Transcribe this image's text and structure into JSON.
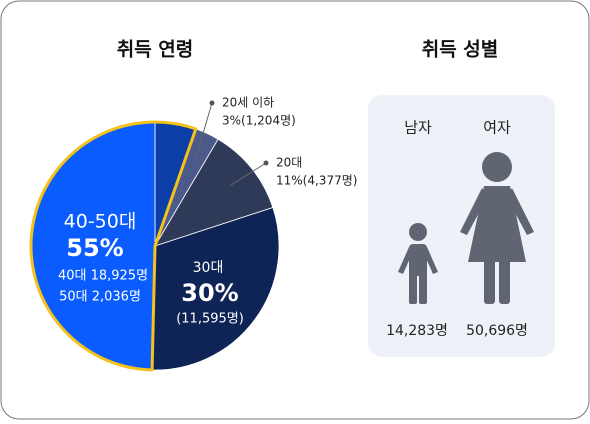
{
  "chart_data": {
    "type": "pie",
    "title": "취득 연령",
    "categories": [
      null,
      "20세 이하",
      "20대",
      "30대",
      null
    ],
    "values": [
      2036,
      1204,
      4377,
      11595,
      18925
    ],
    "value_labels": [
      "50대 2,036명",
      "3%(1,204명)",
      "11%(4,377명)",
      "(11,595명)",
      "40대 18,925명"
    ],
    "colors": [
      "#0b3ea6",
      "#4b5a8a",
      "#2e3a58",
      "#0f2456",
      "#0a5cff"
    ],
    "outline_color": "#f5c21b",
    "callouts": [
      {
        "name": "40-50대",
        "value": {
          "value": 55,
          "label": "55%"
        }
      },
      {
        "value": {
          "value": 30,
          "label": "30%"
        }
      }
    ]
  },
  "gender": {
    "title": "취득 성별",
    "items": [
      {
        "label": "남자",
        "count": "14,283명"
      },
      {
        "label": "여자",
        "count": "50,696명"
      }
    ]
  }
}
